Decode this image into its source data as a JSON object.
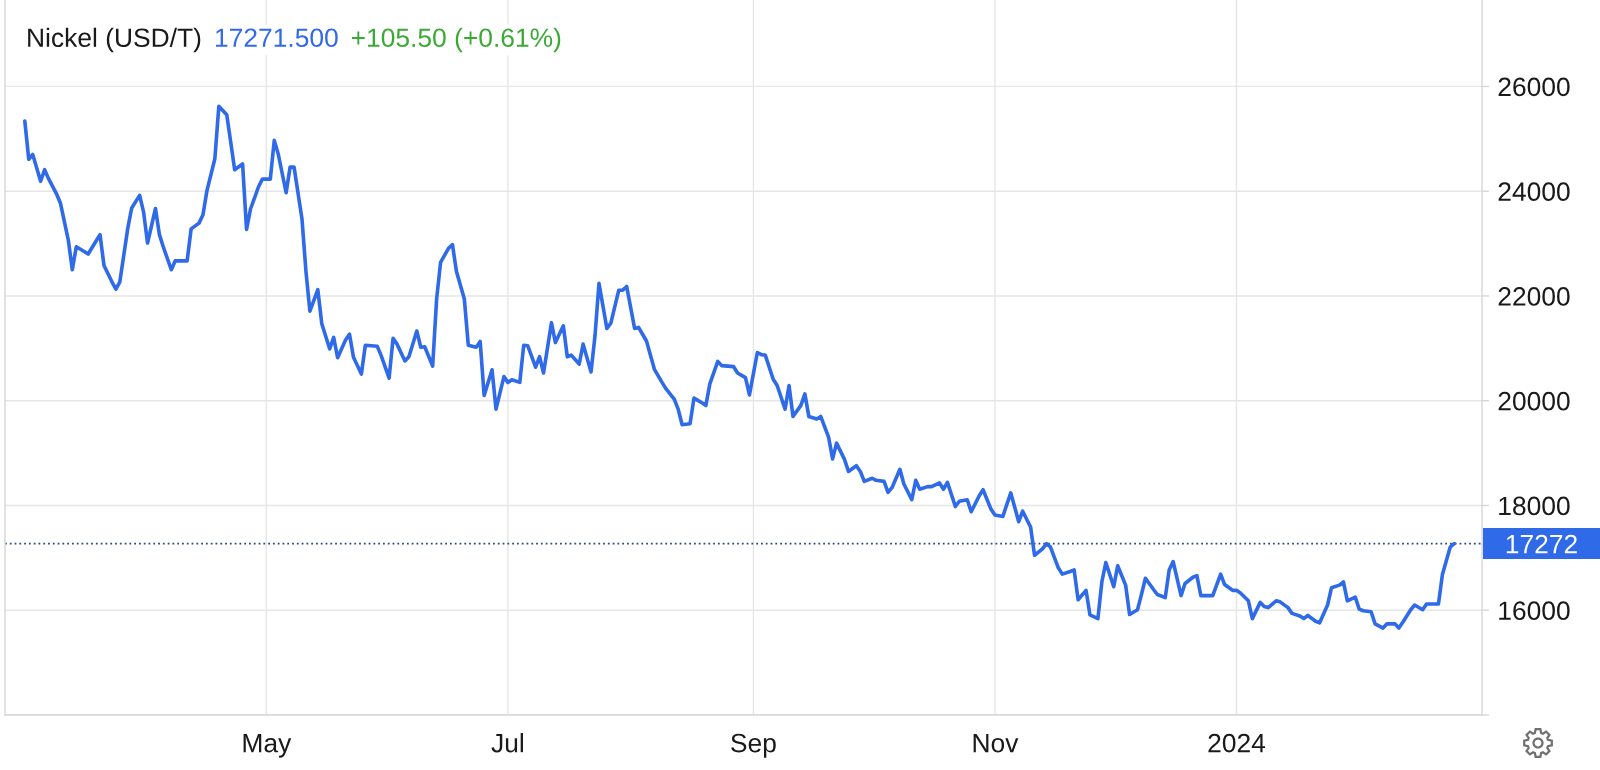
{
  "chart_data": {
    "type": "line",
    "title": "Nickel (USD/T)",
    "annotations": [
      "17271.500",
      "+105.50 (+0.61%)"
    ],
    "x": [
      "2023-03-01",
      "2023-03-02",
      "2023-03-03",
      "2023-03-05",
      "2023-03-06",
      "2023-03-07",
      "2023-03-09",
      "2023-03-10",
      "2023-03-12",
      "2023-03-13",
      "2023-03-14",
      "2023-03-16",
      "2023-03-17",
      "2023-03-19",
      "2023-03-20",
      "2023-03-21",
      "2023-03-23",
      "2023-03-24",
      "2023-03-25",
      "2023-03-27",
      "2023-03-28",
      "2023-03-30",
      "2023-03-31",
      "2023-04-01",
      "2023-04-03",
      "2023-04-04",
      "2023-04-05",
      "2023-04-07",
      "2023-04-08",
      "2023-04-11",
      "2023-04-12",
      "2023-04-14",
      "2023-04-15",
      "2023-04-16",
      "2023-04-18",
      "2023-04-19",
      "2023-04-21",
      "2023-04-22",
      "2023-04-23",
      "2023-04-25",
      "2023-04-26",
      "2023-04-27",
      "2023-04-29",
      "2023-04-30",
      "2023-05-02",
      "2023-05-03",
      "2023-05-04",
      "2023-05-06",
      "2023-05-07",
      "2023-05-08",
      "2023-05-10",
      "2023-05-11",
      "2023-05-12",
      "2023-05-14",
      "2023-05-15",
      "2023-05-17",
      "2023-05-18",
      "2023-05-19",
      "2023-05-21",
      "2023-05-22",
      "2023-05-23",
      "2023-05-25",
      "2023-05-26",
      "2023-05-29",
      "2023-05-30",
      "2023-06-01",
      "2023-06-02",
      "2023-06-03",
      "2023-06-05",
      "2023-06-06",
      "2023-06-08",
      "2023-06-09",
      "2023-06-10",
      "2023-06-12",
      "2023-06-13",
      "2023-06-14",
      "2023-06-16",
      "2023-06-17",
      "2023-06-18",
      "2023-06-20",
      "2023-06-21",
      "2023-06-23",
      "2023-06-24",
      "2023-06-25",
      "2023-06-27",
      "2023-06-28",
      "2023-06-30",
      "2023-07-01",
      "2023-07-02",
      "2023-07-04",
      "2023-07-05",
      "2023-07-06",
      "2023-07-08",
      "2023-07-09",
      "2023-07-10",
      "2023-07-12",
      "2023-07-13",
      "2023-07-15",
      "2023-07-16",
      "2023-07-17",
      "2023-07-19",
      "2023-07-20",
      "2023-07-22",
      "2023-07-23",
      "2023-07-24",
      "2023-07-26",
      "2023-07-27",
      "2023-07-29",
      "2023-07-30",
      "2023-07-31",
      "2023-08-02",
      "2023-08-03",
      "2023-08-05",
      "2023-08-06",
      "2023-08-07",
      "2023-08-09",
      "2023-08-10",
      "2023-08-12",
      "2023-08-13",
      "2023-08-14",
      "2023-08-16",
      "2023-08-17",
      "2023-08-19",
      "2023-08-20",
      "2023-08-21",
      "2023-08-23",
      "2023-08-24",
      "2023-08-27",
      "2023-08-28",
      "2023-08-30",
      "2023-08-31",
      "2023-09-02",
      "2023-09-03",
      "2023-09-04",
      "2023-09-06",
      "2023-09-07",
      "2023-09-09",
      "2023-09-10",
      "2023-09-11",
      "2023-09-13",
      "2023-09-14",
      "2023-09-15",
      "2023-09-17",
      "2023-09-18",
      "2023-09-20",
      "2023-09-21",
      "2023-09-22",
      "2023-09-24",
      "2023-09-25",
      "2023-09-27",
      "2023-09-28",
      "2023-09-29",
      "2023-10-01",
      "2023-10-02",
      "2023-10-04",
      "2023-10-05",
      "2023-10-06",
      "2023-10-08",
      "2023-10-09",
      "2023-10-11",
      "2023-10-12",
      "2023-10-13",
      "2023-10-15",
      "2023-10-16",
      "2023-10-18",
      "2023-10-19",
      "2023-10-20",
      "2023-10-22",
      "2023-10-23",
      "2023-10-25",
      "2023-10-26",
      "2023-10-28",
      "2023-10-29",
      "2023-10-31",
      "2023-11-01",
      "2023-11-03",
      "2023-11-04",
      "2023-11-05",
      "2023-11-07",
      "2023-11-08",
      "2023-11-10",
      "2023-11-11",
      "2023-11-13",
      "2023-11-14",
      "2023-11-15",
      "2023-11-17",
      "2023-11-18",
      "2023-11-20",
      "2023-11-21",
      "2023-11-22",
      "2023-11-24",
      "2023-11-25",
      "2023-11-27",
      "2023-11-28",
      "2023-11-29",
      "2023-12-01",
      "2023-12-02",
      "2023-12-04",
      "2023-12-05",
      "2023-12-07",
      "2023-12-08",
      "2023-12-09",
      "2023-12-11",
      "2023-12-12",
      "2023-12-14",
      "2023-12-15",
      "2023-12-16",
      "2023-12-18",
      "2023-12-19",
      "2023-12-21",
      "2023-12-22",
      "2023-12-23",
      "2023-12-26",
      "2023-12-28",
      "2023-12-29",
      "2023-12-31",
      "2024-01-01",
      "2024-01-02",
      "2024-01-04",
      "2024-01-05",
      "2024-01-07",
      "2024-01-08",
      "2024-01-09",
      "2024-01-11",
      "2024-01-12",
      "2024-01-14",
      "2024-01-15",
      "2024-01-17",
      "2024-01-18",
      "2024-01-19",
      "2024-01-21",
      "2024-01-22",
      "2024-01-24",
      "2024-01-25",
      "2024-01-27",
      "2024-01-28",
      "2024-01-29",
      "2024-01-31",
      "2024-02-01",
      "2024-02-02",
      "2024-02-04",
      "2024-02-05",
      "2024-02-07",
      "2024-02-08",
      "2024-02-10",
      "2024-02-11",
      "2024-02-12",
      "2024-02-14",
      "2024-02-15",
      "2024-02-17",
      "2024-02-18",
      "2024-02-21",
      "2024-02-22",
      "2024-02-24",
      "2024-02-25"
    ],
    "series": [
      {
        "color": "#2f6ae8",
        "values": [
          25340,
          24610,
          24700,
          24190,
          24410,
          24240,
          23950,
          23770,
          23060,
          22500,
          22940,
          22850,
          22800,
          23050,
          23170,
          22580,
          22270,
          22130,
          22270,
          23290,
          23680,
          23920,
          23600,
          23010,
          23670,
          23170,
          22930,
          22500,
          22670,
          22670,
          23280,
          23390,
          23550,
          24010,
          24620,
          25620,
          25460,
          24940,
          24410,
          24520,
          23270,
          23660,
          24080,
          24230,
          24230,
          24970,
          24710,
          23970,
          24460,
          24460,
          23470,
          22470,
          21710,
          22120,
          21470,
          20990,
          21210,
          20820,
          21160,
          21270,
          20830,
          20510,
          21060,
          21040,
          20860,
          20430,
          21190,
          21080,
          20760,
          20840,
          21330,
          21020,
          21030,
          20660,
          21940,
          22640,
          22910,
          22980,
          22470,
          21940,
          21060,
          21020,
          21130,
          20100,
          20590,
          19840,
          20460,
          20350,
          20400,
          20350,
          21060,
          21050,
          20640,
          20840,
          20530,
          21490,
          21110,
          21430,
          20840,
          20870,
          20700,
          21080,
          20550,
          21240,
          22240,
          21380,
          21480,
          22110,
          22110,
          22180,
          21380,
          21400,
          21140,
          20870,
          20600,
          20340,
          20220,
          20030,
          19840,
          19540,
          19560,
          20050,
          19960,
          19910,
          20320,
          20750,
          20670,
          20650,
          20530,
          20440,
          20110,
          20920,
          20880,
          20870,
          20410,
          20290,
          19840,
          20290,
          19700,
          19910,
          20130,
          19700,
          19650,
          19700,
          19300,
          18890,
          19190,
          18880,
          18650,
          18760,
          18650,
          18460,
          18520,
          18480,
          18460,
          18250,
          18340,
          18690,
          18410,
          18110,
          18480,
          18310,
          18360,
          18360,
          18430,
          18310,
          18440,
          17980,
          18080,
          18110,
          17880,
          18180,
          18300,
          17930,
          17820,
          17790,
          18020,
          18240,
          17690,
          17890,
          17590,
          17050,
          17170,
          17270,
          17210,
          16810,
          16690,
          16740,
          16770,
          16200,
          16380,
          15910,
          15840,
          16540,
          16910,
          16450,
          16850,
          16480,
          15920,
          16010,
          16300,
          16610,
          16400,
          16300,
          16240,
          16770,
          16930,
          16280,
          16510,
          16630,
          16660,
          16280,
          16280,
          16690,
          16490,
          16380,
          16380,
          16330,
          16180,
          15840,
          16150,
          16070,
          16050,
          16180,
          16160,
          16050,
          15940,
          15890,
          15840,
          15900,
          15790,
          15760,
          16100,
          16430,
          16480,
          16540,
          16180,
          16250,
          16020,
          15990,
          15970,
          15740,
          15660,
          15740,
          15740,
          15660,
          15770,
          16010,
          16100,
          16010,
          16120,
          16120,
          16680,
          17210,
          17272
        ]
      }
    ],
    "xlim": [
      "2023-02-24",
      "2024-03-03"
    ],
    "xticks": [
      {
        "value": "2023-05-01",
        "label": "May"
      },
      {
        "value": "2023-07-01",
        "label": "Jul"
      },
      {
        "value": "2023-09-01",
        "label": "Sep"
      },
      {
        "value": "2023-11-01",
        "label": "Nov"
      },
      {
        "value": "2024-01-01",
        "label": "2024"
      }
    ],
    "ylim": [
      14000,
      27650
    ],
    "yticks": [
      {
        "value": 14000,
        "label": null
      },
      16000,
      18000,
      20000,
      22000,
      24000,
      26000
    ],
    "ref_lines": [
      {
        "axis": "y",
        "value": 17272,
        "label": "17272",
        "color": "#2b4c7e",
        "line_style": "dotted"
      }
    ],
    "grid": true
  }
}
